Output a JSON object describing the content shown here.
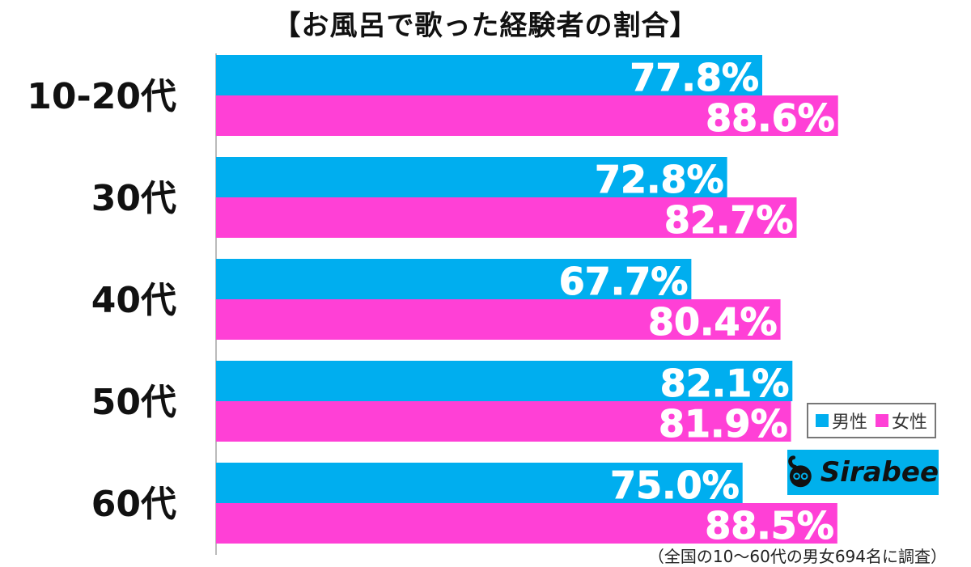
{
  "chart_data": {
    "type": "bar",
    "orientation": "horizontal",
    "title": "【お風呂で歌った経験者の割合】",
    "categories": [
      "10-20代",
      "30代",
      "40代",
      "50代",
      "60代"
    ],
    "series": [
      {
        "name": "男性",
        "color": "#00aeef",
        "values": [
          77.8,
          72.8,
          67.7,
          82.1,
          75.0
        ],
        "labels": [
          "77.8%",
          "72.8%",
          "67.7%",
          "82.1%",
          "75.0%"
        ]
      },
      {
        "name": "女性",
        "color": "#ff40d6",
        "values": [
          88.6,
          82.7,
          80.4,
          81.9,
          88.5
        ],
        "labels": [
          "88.6%",
          "82.7%",
          "80.4%",
          "81.9%",
          "88.5%"
        ]
      }
    ],
    "xlim": [
      0,
      100
    ],
    "grid": false,
    "legend": "bottom-right"
  },
  "legend": {
    "male": "男性",
    "female": "女性"
  },
  "logo": {
    "text": "Sirabee",
    "icon": "sirabee-logo-icon"
  },
  "footnote": "（全国の10～60代の男女694名に調査）"
}
